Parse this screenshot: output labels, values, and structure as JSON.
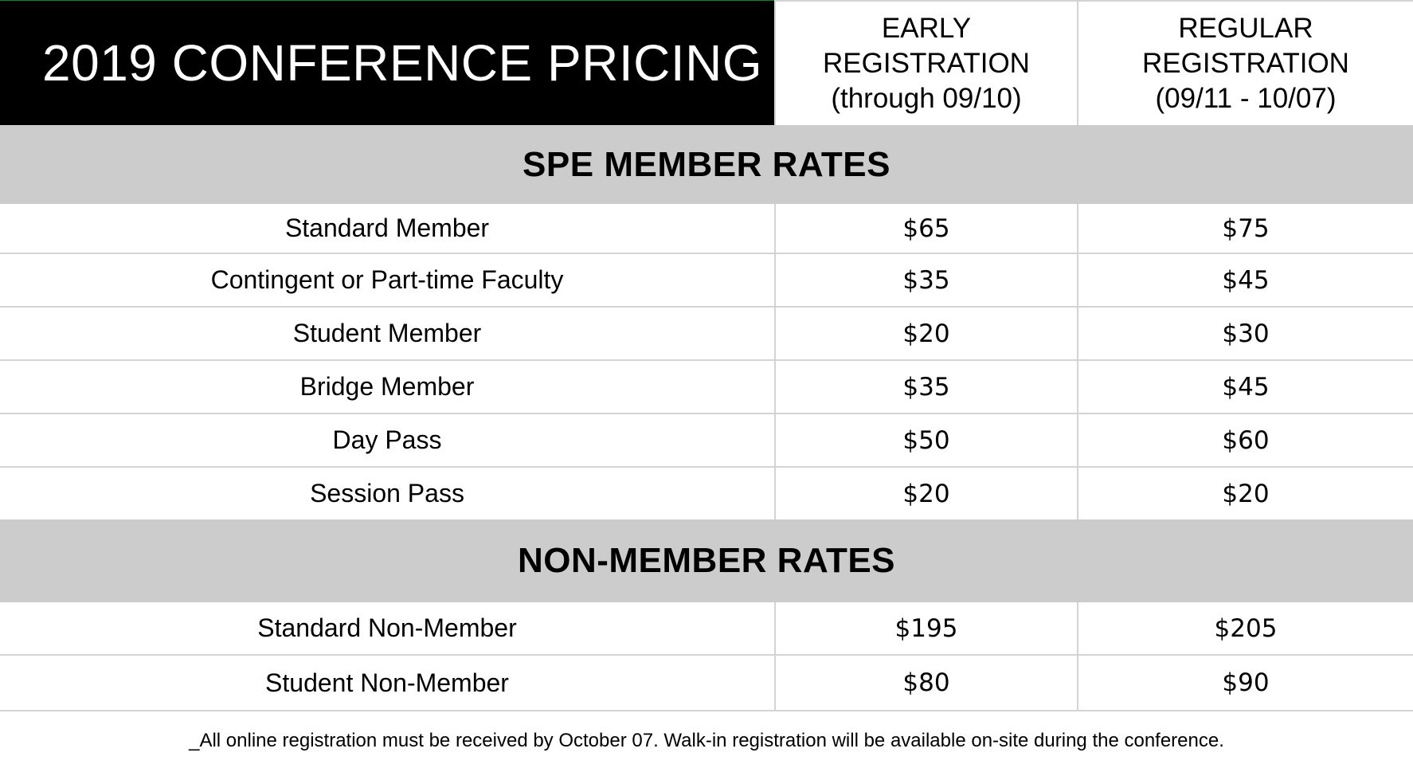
{
  "header": {
    "title": "2019 CONFERENCE PRICING",
    "early": {
      "label": "EARLY REGISTRATION",
      "sub": "(through 09/10)"
    },
    "regular": {
      "label": "REGULAR REGISTRATION",
      "sub": "(09/11 - 10/07)"
    }
  },
  "sections": [
    {
      "title": "SPE MEMBER RATES",
      "rows": [
        {
          "name": "Standard Member",
          "early": "$65",
          "regular": "$75"
        },
        {
          "name": "Contingent or Part-time Faculty",
          "early": "$35",
          "regular": "$45"
        },
        {
          "name": "Student Member",
          "early": "$20",
          "regular": "$30"
        },
        {
          "name": "Bridge Member",
          "early": "$35",
          "regular": "$45"
        },
        {
          "name": "Day Pass",
          "early": "$50",
          "regular": "$60"
        },
        {
          "name": "Session Pass",
          "early": "$20",
          "regular": "$20"
        }
      ]
    },
    {
      "title": "NON-MEMBER RATES",
      "rows": [
        {
          "name": "Standard Non-Member",
          "early": "$195",
          "regular": "$205"
        },
        {
          "name": "Student Non-Member",
          "early": "$80",
          "regular": "$90"
        }
      ]
    }
  ],
  "footnote": "_All online registration must be received by October 07. Walk-in registration will be available on-site during the conference.",
  "colors": {
    "title_bg": "#000000",
    "section_bg": "#cdcccc",
    "accent": "#2f6f3a"
  }
}
